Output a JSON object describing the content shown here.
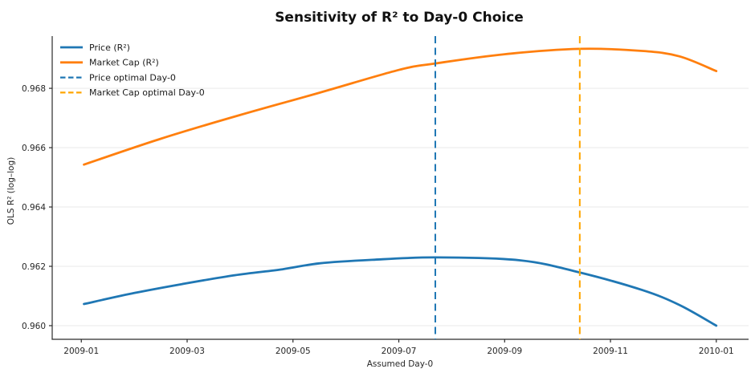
{
  "accent_colors": {
    "price_blue": "#1f77b4",
    "market_cap_orange": "#ff7f0e",
    "price_vline_blue": "#1f77b4",
    "market_cap_vline_orange": "#ffa500",
    "grid_gray": "#e9e9e9",
    "spine_dark": "#2b2b2b"
  },
  "chart_data": {
    "type": "line",
    "title": "Sensitivity of R² to Day-0 Choice",
    "xlabel": "Assumed Day-0",
    "ylabel": "OLS R² (log–log)",
    "grid": "horizontal-only",
    "legend_position": "upper-left-inside-frameless",
    "x_unit": "months since 2009-01",
    "xlim": [
      -0.55,
      12.61
    ],
    "ylim": [
      0.95954,
      0.96976
    ],
    "xticks": {
      "values": [
        0,
        2,
        4,
        6,
        8,
        10,
        12
      ],
      "labels": [
        "2009-01",
        "2009-03",
        "2009-05",
        "2009-07",
        "2009-09",
        "2009-11",
        "2010-01"
      ]
    },
    "yticks": {
      "values": [
        0.96,
        0.962,
        0.964,
        0.966,
        0.968
      ],
      "labels": [
        "0.960",
        "0.962",
        "0.964",
        "0.966",
        "0.968"
      ]
    },
    "series": [
      {
        "name": "Price (R²)",
        "color": "#1f77b4",
        "line_style": "solid",
        "points": [
          [
            0.05,
            0.96073
          ],
          [
            1.0,
            0.9611
          ],
          [
            1.9,
            0.9614
          ],
          [
            2.9,
            0.9617
          ],
          [
            3.8,
            0.9619
          ],
          [
            4.5,
            0.9621
          ],
          [
            5.5,
            0.96222
          ],
          [
            6.7,
            0.9623
          ],
          [
            8.3,
            0.9622
          ],
          [
            9.4,
            0.9618
          ],
          [
            10.6,
            0.9612
          ],
          [
            11.3,
            0.9607
          ],
          [
            12.0,
            0.96
          ]
        ]
      },
      {
        "name": "Market Cap (R²)",
        "color": "#ff7f0e",
        "line_style": "solid",
        "points": [
          [
            0.05,
            0.96543
          ],
          [
            1.5,
            0.9663
          ],
          [
            3.0,
            0.9671
          ],
          [
            4.5,
            0.96785
          ],
          [
            6.0,
            0.96862
          ],
          [
            6.7,
            0.96884
          ],
          [
            8.0,
            0.96915
          ],
          [
            9.42,
            0.96933
          ],
          [
            10.6,
            0.96926
          ],
          [
            11.3,
            0.96908
          ],
          [
            12.0,
            0.96858
          ]
        ]
      }
    ],
    "vlines": [
      {
        "name": "Price optimal Day-0",
        "color": "#1f77b4",
        "line_style": "dashed",
        "x": 6.69
      },
      {
        "name": "Market Cap optimal Day-0",
        "color": "#ffa500",
        "line_style": "dashed",
        "x": 9.42
      }
    ],
    "legend_entries": [
      {
        "label": "Price (R²)",
        "color": "#1f77b4",
        "dashed": false
      },
      {
        "label": "Market Cap (R²)",
        "color": "#ff7f0e",
        "dashed": false
      },
      {
        "label": "Price optimal Day-0",
        "color": "#1f77b4",
        "dashed": true
      },
      {
        "label": "Market Cap optimal Day-0",
        "color": "#ffa500",
        "dashed": true
      }
    ]
  }
}
